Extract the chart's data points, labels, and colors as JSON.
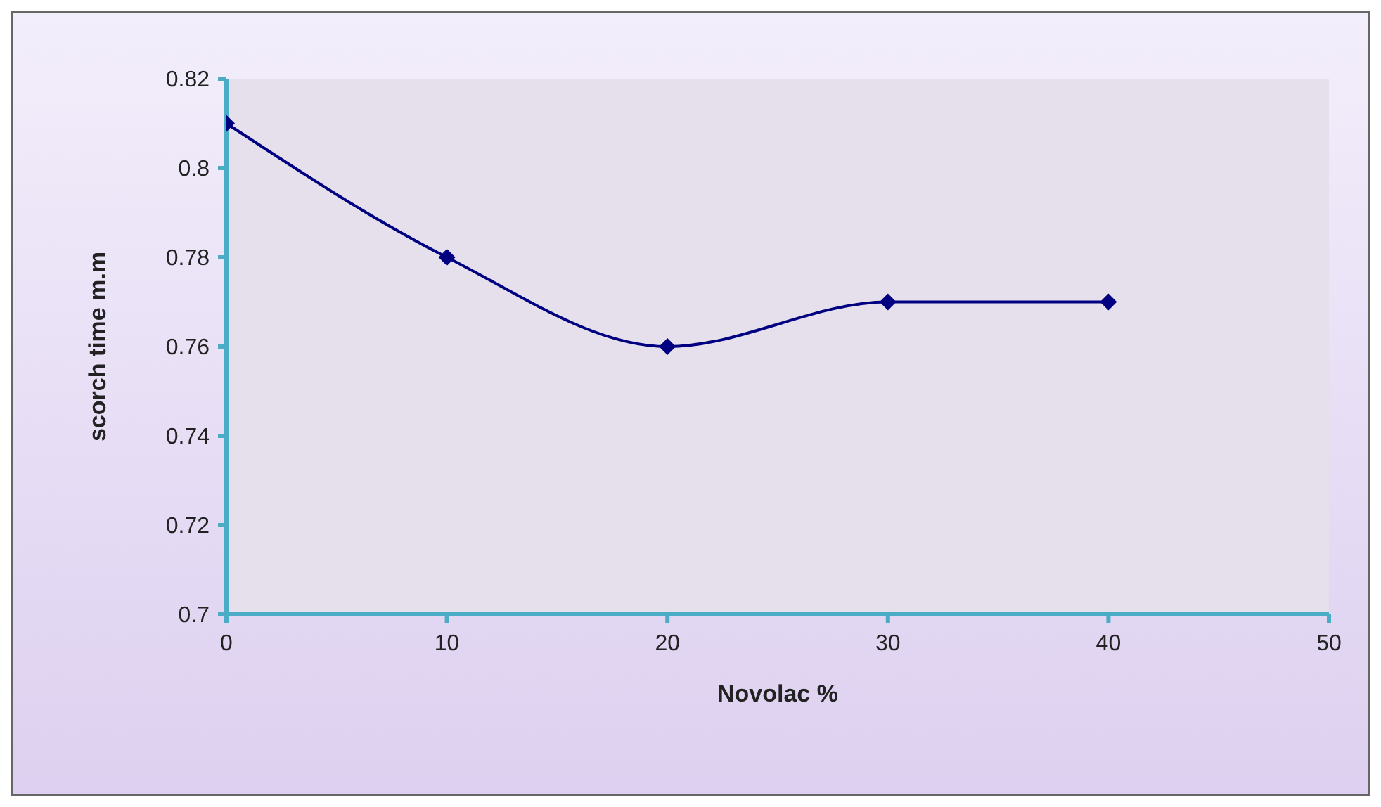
{
  "chart_data": {
    "type": "line",
    "xlabel": "Novolac %",
    "ylabel": "scorch time m.m",
    "x": [
      0,
      10,
      20,
      30,
      40
    ],
    "series": [
      {
        "color": "#000080",
        "values": [
          0.81,
          0.78,
          0.76,
          0.77,
          0.77
        ]
      }
    ],
    "xlim": [
      0,
      50
    ],
    "xticks": [
      0,
      10,
      20,
      30,
      40,
      50
    ],
    "ylim": [
      0.7,
      0.82
    ],
    "yticks": [
      0.7,
      0.72,
      0.74,
      0.76,
      0.78,
      0.8,
      0.82
    ],
    "grid": false,
    "marker": "diamond",
    "line_style": "solid"
  }
}
